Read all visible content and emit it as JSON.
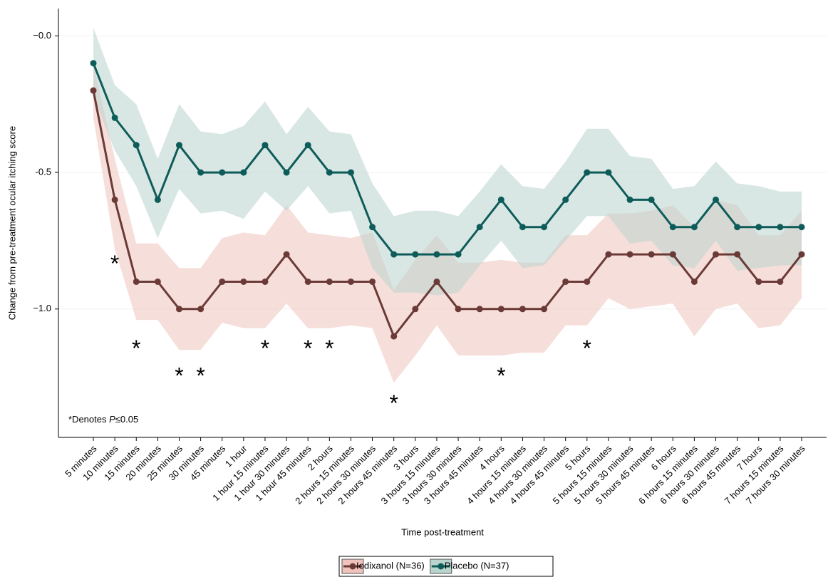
{
  "chart_data": {
    "type": "line",
    "y_label": "Change from pre-treatment ocular itching score",
    "x_label": "Time post-treatment",
    "categories": [
      "5 minutes",
      "10 minutes",
      "15 minutes",
      "20 minutes",
      "25 minutes",
      "30 minutes",
      "45 minutes",
      "1 hour",
      "1 hour 15 minutes",
      "1 hour 30 minutes",
      "1 hour 45 minutes",
      "2 hours",
      "2 hours 15 minutes",
      "2 hours 30 minutes",
      "2 hours 45 minutes",
      "3 hours",
      "3 hours 15 minutes",
      "3 hours 30 minutes",
      "3 hours 45 minutes",
      "4 hours",
      "4 hours 15 minutes",
      "4 hours 30 minutes",
      "4 hours 45 minutes",
      "5 hours",
      "5 hours 15 minutes",
      "5 hours 30 minutes",
      "5 hours 45 minutes",
      "6 hours",
      "6 hours 15 minutes",
      "6 hours 30 minutes",
      "6 hours 45 minutes",
      "7 hours",
      "7 hours 15 minutes",
      "7 hours 30 minutes"
    ],
    "series": [
      {
        "name": "Iodixanol (N=36)",
        "color": "#6b3a36",
        "band_color": "#efc3bb",
        "values": [
          -0.2,
          -0.6,
          -0.9,
          -0.9,
          -1.0,
          -1.0,
          -0.9,
          -0.9,
          -0.9,
          -0.8,
          -0.9,
          -0.9,
          -0.9,
          -0.9,
          -1.1,
          -1.0,
          -0.9,
          -1.0,
          -1.0,
          -1.0,
          -1.0,
          -1.0,
          -0.9,
          -0.9,
          -0.8,
          -0.8,
          -0.8,
          -0.8,
          -0.9,
          -0.8,
          -0.8,
          -0.9,
          -0.9,
          -0.8
        ],
        "upper": [
          -0.1,
          -0.45,
          -0.76,
          -0.76,
          -0.85,
          -0.85,
          -0.74,
          -0.72,
          -0.73,
          -0.62,
          -0.72,
          -0.73,
          -0.74,
          -0.72,
          -0.93,
          -0.82,
          -0.73,
          -0.83,
          -0.83,
          -0.82,
          -0.83,
          -0.83,
          -0.73,
          -0.73,
          -0.65,
          -0.65,
          -0.64,
          -0.62,
          -0.7,
          -0.6,
          -0.62,
          -0.73,
          -0.73,
          -0.64
        ],
        "lower": [
          -0.3,
          -0.78,
          -1.04,
          -1.04,
          -1.15,
          -1.15,
          -1.05,
          -1.07,
          -1.07,
          -0.98,
          -1.07,
          -1.07,
          -1.06,
          -1.07,
          -1.27,
          -1.17,
          -1.06,
          -1.17,
          -1.17,
          -1.17,
          -1.16,
          -1.16,
          -1.06,
          -1.06,
          -0.96,
          -1.0,
          -0.99,
          -0.98,
          -1.1,
          -1.0,
          -0.98,
          -1.07,
          -1.06,
          -0.96
        ]
      },
      {
        "name": "Placebo (N=37)",
        "color": "#0e5c5a",
        "band_color": "#b9d3cd",
        "values": [
          -0.1,
          -0.3,
          -0.4,
          -0.6,
          -0.4,
          -0.5,
          -0.5,
          -0.5,
          -0.4,
          -0.5,
          -0.4,
          -0.5,
          -0.5,
          -0.7,
          -0.8,
          -0.8,
          -0.8,
          -0.8,
          -0.7,
          -0.6,
          -0.7,
          -0.7,
          -0.6,
          -0.5,
          -0.5,
          -0.6,
          -0.6,
          -0.7,
          -0.7,
          -0.6,
          -0.7,
          -0.7,
          -0.7,
          -0.7
        ],
        "upper": [
          0.03,
          -0.18,
          -0.25,
          -0.45,
          -0.25,
          -0.35,
          -0.36,
          -0.33,
          -0.24,
          -0.36,
          -0.26,
          -0.35,
          -0.36,
          -0.54,
          -0.66,
          -0.64,
          -0.64,
          -0.66,
          -0.57,
          -0.47,
          -0.55,
          -0.56,
          -0.46,
          -0.34,
          -0.34,
          -0.44,
          -0.45,
          -0.56,
          -0.55,
          -0.46,
          -0.54,
          -0.55,
          -0.57,
          -0.57
        ],
        "lower": [
          -0.22,
          -0.42,
          -0.55,
          -0.74,
          -0.56,
          -0.65,
          -0.64,
          -0.67,
          -0.57,
          -0.64,
          -0.55,
          -0.65,
          -0.64,
          -0.85,
          -0.94,
          -0.94,
          -0.95,
          -0.94,
          -0.84,
          -0.75,
          -0.85,
          -0.84,
          -0.75,
          -0.66,
          -0.66,
          -0.76,
          -0.75,
          -0.84,
          -0.85,
          -0.75,
          -0.86,
          -0.85,
          -0.84,
          -0.84
        ]
      }
    ],
    "ylim": [
      -1.47,
      0.1
    ],
    "yticks": [
      {
        "value": 0,
        "label": "−0.0"
      },
      {
        "value": -0.5,
        "label": "-0.5"
      },
      {
        "value": -1.0,
        "label": "−1.0"
      }
    ],
    "grid": true,
    "annotations": [
      {
        "text": "*",
        "x": "10 minutes",
        "y": -0.82
      },
      {
        "text": "*",
        "x": "15 minutes",
        "y": -1.13
      },
      {
        "text": "*",
        "x": "25 minutes",
        "y": -1.23
      },
      {
        "text": "*",
        "x": "30 minutes",
        "y": -1.23
      },
      {
        "text": "*",
        "x": "1 hour 15 minutes",
        "y": -1.13
      },
      {
        "text": "*",
        "x": "1 hour 45 minutes",
        "y": -1.13
      },
      {
        "text": "*",
        "x": "2 hours",
        "y": -1.13
      },
      {
        "text": "*",
        "x": "2 hours 45 minutes",
        "y": -1.33
      },
      {
        "text": "*",
        "x": "4 hours",
        "y": -1.23
      },
      {
        "text": "*",
        "x": "5 hours",
        "y": -1.13
      }
    ],
    "note": [
      "*Denotes ",
      "P",
      "≤0.05"
    ]
  }
}
